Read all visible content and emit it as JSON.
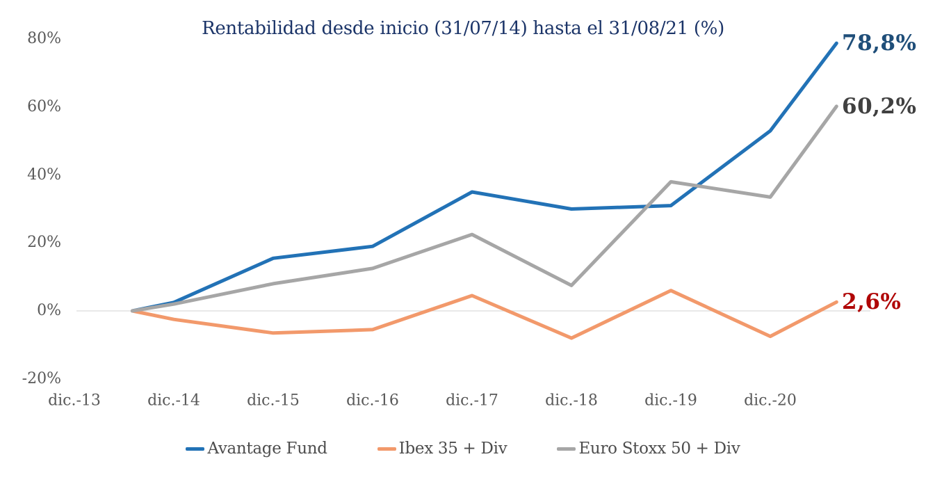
{
  "chart_data": {
    "type": "line",
    "title": "Rentabilidad desde inicio (31/07/14) hasta el 31/08/21 (%)",
    "xlabel": "",
    "ylabel": "",
    "ylim": [
      -20,
      80
    ],
    "grid": "horizontal line at 0% only",
    "legend_position": "bottom",
    "x_months_from_dec13": [
      7,
      12,
      24,
      36,
      48,
      60,
      72,
      84,
      92
    ],
    "x_point_dates": [
      "31/07/14",
      "dic-14",
      "dic-15",
      "dic-16",
      "dic-17",
      "dic-18",
      "dic-19",
      "dic-20",
      "31/08/21"
    ],
    "categories": [
      {
        "label": "dic.-13",
        "month": 0
      },
      {
        "label": "dic.-14",
        "month": 12
      },
      {
        "label": "dic.-15",
        "month": 24
      },
      {
        "label": "dic.-16",
        "month": 36
      },
      {
        "label": "dic.-17",
        "month": 48
      },
      {
        "label": "dic.-18",
        "month": 60
      },
      {
        "label": "dic.-19",
        "month": 72
      },
      {
        "label": "dic.-20",
        "month": 84
      }
    ],
    "y_ticks": [
      {
        "label": "80%",
        "value": 80
      },
      {
        "label": "60%",
        "value": 60
      },
      {
        "label": "40%",
        "value": 40
      },
      {
        "label": "20%",
        "value": 20
      },
      {
        "label": "0%",
        "value": 0,
        "gridline": true
      },
      {
        "label": "-20%",
        "value": -20
      }
    ],
    "series": [
      {
        "name": "Avantage Fund",
        "color": "#2272B6",
        "values": [
          0,
          2.5,
          15.5,
          19,
          35,
          30,
          31,
          53,
          78.8
        ]
      },
      {
        "name": "Ibex 35 + Div",
        "color": "#F2996B",
        "values": [
          0,
          -2.5,
          -6.5,
          -5.5,
          4.5,
          -8,
          6,
          -7.5,
          2.6
        ]
      },
      {
        "name": "Euro Stoxx 50 + Div",
        "color": "#A6A6A6",
        "values": [
          0,
          2,
          8,
          12.5,
          22.5,
          7.5,
          38,
          33.5,
          60.2
        ]
      }
    ],
    "end_labels": [
      {
        "text": "78,8%",
        "value": 78.8,
        "color": "#1F4E79",
        "series": "Avantage Fund"
      },
      {
        "text": "60,2%",
        "value": 60.2,
        "color": "#404040",
        "series": "Euro Stoxx 50 + Div"
      },
      {
        "text": "2,6%",
        "value": 2.6,
        "color": "#B00606",
        "series": "Ibex 35 + Div"
      }
    ],
    "gridline_color": "#DADADA"
  },
  "legend": {
    "items": [
      {
        "label": "Avantage Fund"
      },
      {
        "label": "Ibex 35 + Div"
      },
      {
        "label": "Euro Stoxx 50 + Div"
      }
    ]
  }
}
